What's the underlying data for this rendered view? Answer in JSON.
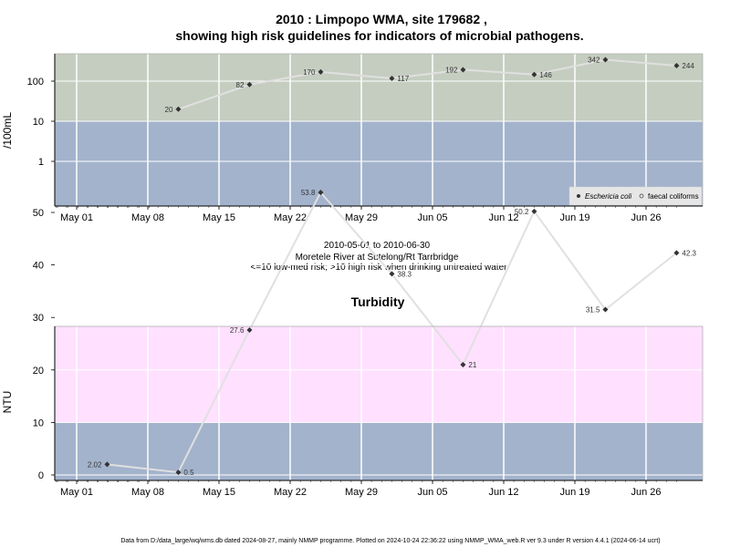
{
  "title_line1": "2010 : Limpopo WMA, site 179682 ,",
  "title_line2": "showing high risk guidelines for indicators of microbial pathogens.",
  "subtitle_lines": [
    "2010-05-01 to 2010-06-30",
    "Moretele River at Sutelong/Rt Tarrbridge",
    "<=10 low-med risk; >10 high risk when drinking untreated water"
  ],
  "footer": "Data from D:/data_large/wq/wms.db dated 2024-08-27, mainly NMMP programme. Plotted on 2024-10-24 22:36:22 using NMMP_WMA_web.R ver 9.3 under R version 4.4.1 (2024-06-14 ucrt)",
  "colors": {
    "high_risk_micro": "#c5cdc0",
    "low_risk": "#a3b3cc",
    "high_risk_turb": "#ffe0ff",
    "line": "#e0e0e0",
    "point": "#333333"
  },
  "chart_data": [
    {
      "type": "line",
      "ylabel": "/100mL",
      "log_scale": true,
      "threshold": 10,
      "y_ticks": [
        "1",
        "10",
        "100"
      ],
      "x_ticks": [
        "May 01",
        "May 08",
        "May 15",
        "May 22",
        "May 29",
        "Jun 05",
        "Jun 12",
        "Jun 19",
        "Jun 26"
      ],
      "x_dates": [
        "2010-05-11",
        "2010-05-18",
        "2010-05-25",
        "2010-06-01",
        "2010-06-08",
        "2010-06-15",
        "2010-06-22",
        "2010-06-29"
      ],
      "values": [
        20,
        82,
        170,
        117,
        192,
        146,
        342,
        244
      ],
      "labels": [
        "20",
        "82",
        "170",
        "117",
        "192",
        "146",
        "342",
        "244"
      ],
      "label_side": [
        "left",
        "left",
        "left",
        "right",
        "left",
        "right",
        "left",
        "right"
      ],
      "legend": [
        "Eschericia coli",
        "faecal coliforms"
      ],
      "legend_placement": "bottom-right"
    },
    {
      "type": "line",
      "title": "Turbidity",
      "ylabel": "NTU",
      "log_scale": false,
      "threshold": 10,
      "ylim": [
        -1,
        56
      ],
      "y_ticks": [
        "0",
        "10",
        "20",
        "30",
        "40",
        "50"
      ],
      "x_ticks": [
        "May 01",
        "May 08",
        "May 15",
        "May 22",
        "May 29",
        "Jun 05",
        "Jun 12",
        "Jun 19",
        "Jun 26"
      ],
      "x_dates": [
        "2010-05-04",
        "2010-05-11",
        "2010-05-18",
        "2010-05-25",
        "2010-06-01",
        "2010-06-08",
        "2010-06-15",
        "2010-06-22",
        "2010-06-29"
      ],
      "values": [
        2.02,
        0.5,
        27.6,
        53.8,
        38.3,
        21,
        50.2,
        31.5,
        42.3
      ],
      "labels": [
        "2.02",
        "0.5",
        "27.6",
        "53.8",
        "38.3",
        "21",
        "50.2",
        "31.5",
        "42.3"
      ],
      "label_side": [
        "left",
        "right",
        "left",
        "left",
        "right",
        "right",
        "left",
        "left",
        "right"
      ]
    }
  ]
}
